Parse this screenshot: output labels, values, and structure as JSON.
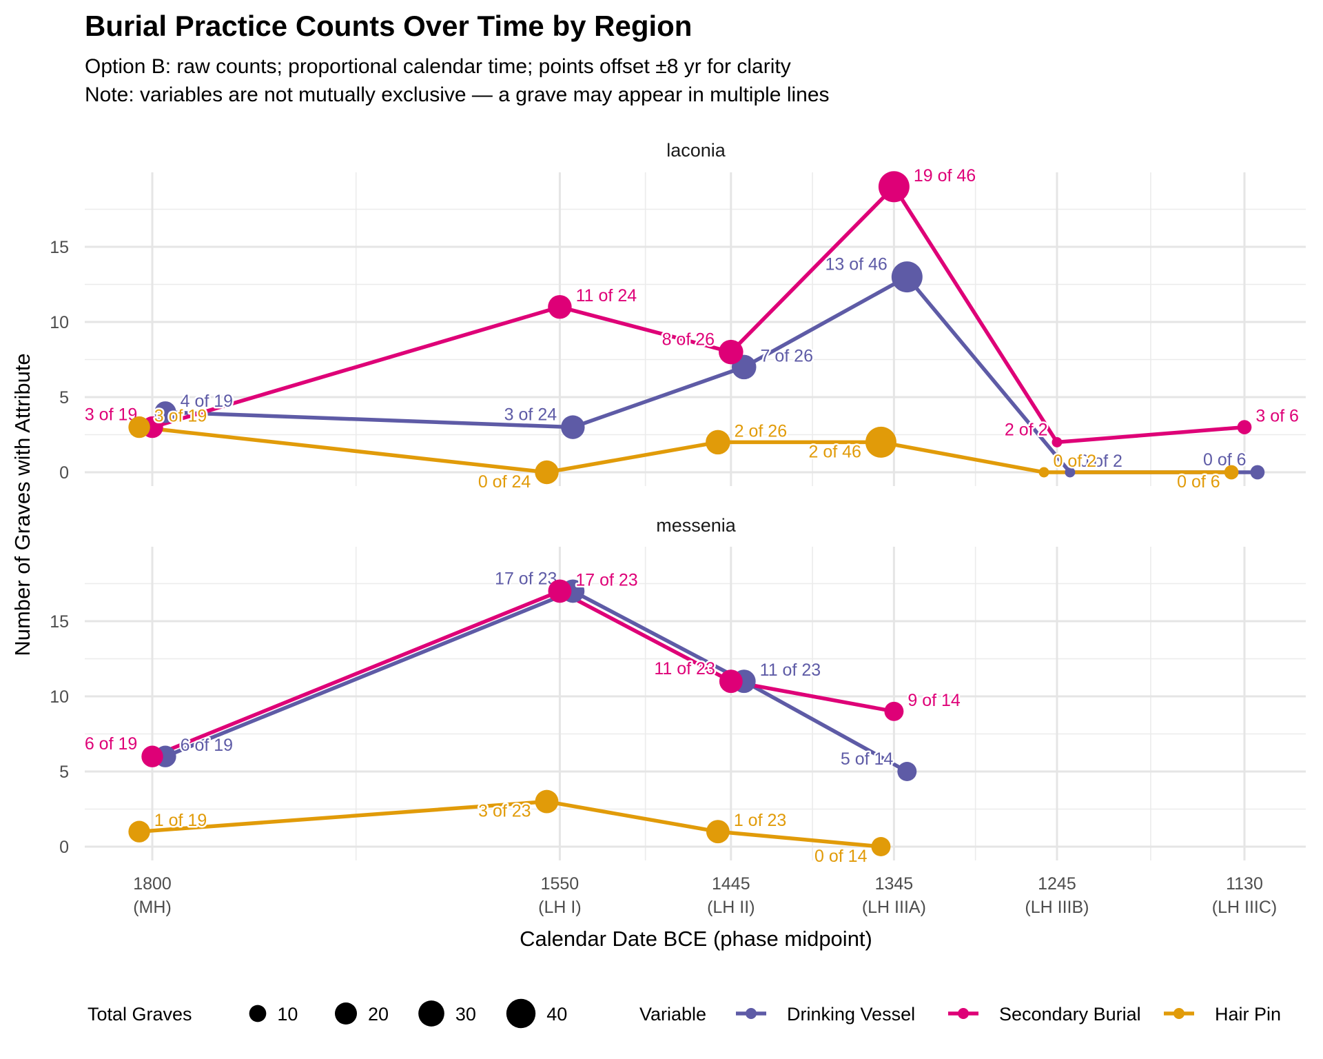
{
  "chart_data": {
    "type": "line",
    "title": "Burial Practice Counts Over Time by Region",
    "subtitle_lines": [
      "Option B: raw counts; proportional calendar time; points offset ±8 yr for clarity",
      "Note: variables are not mutually exclusive — a grave may appear in multiple lines"
    ],
    "xlabel": "Calendar Date BCE (phase midpoint)",
    "ylabel": "Number of Graves with Attribute",
    "x_ticks": [
      {
        "value": 1800,
        "label": "1800",
        "phase": "(MH)"
      },
      {
        "value": 1550,
        "label": "1550",
        "phase": "(LH I)"
      },
      {
        "value": 1445,
        "label": "1445",
        "phase": "(LH II)"
      },
      {
        "value": 1345,
        "label": "1345",
        "phase": "(LH IIIA)"
      },
      {
        "value": 1245,
        "label": "1245",
        "phase": "(LH IIIB)"
      },
      {
        "value": 1130,
        "label": "1130",
        "phase": "(LH IIIC)"
      }
    ],
    "xlim": [
      1835,
      1085
    ],
    "x_reversed": true,
    "y_ticks": [
      0,
      5,
      10,
      15
    ],
    "ylim": [
      -0.8,
      19.6
    ],
    "grid": true,
    "point_offset_years": 8,
    "series_order": [
      "Drinking Vessel",
      "Secondary Burial",
      "Hair Pin"
    ],
    "colors": {
      "Drinking Vessel": "#5e5ba6",
      "Secondary Burial": "#de0077",
      "Hair Pin": "#e19b09"
    },
    "offsets": {
      "Drinking Vessel": -8,
      "Secondary Burial": 0,
      "Hair Pin": 8
    },
    "panels": [
      {
        "name": "laconia",
        "series": [
          {
            "name": "Drinking Vessel",
            "points": [
              {
                "x": 1800,
                "y": 4,
                "total": 19,
                "label": "4 of 19"
              },
              {
                "x": 1550,
                "y": 3,
                "total": 24,
                "label": "3 of 24"
              },
              {
                "x": 1445,
                "y": 7,
                "total": 26,
                "label": "7 of 26"
              },
              {
                "x": 1345,
                "y": 13,
                "total": 46,
                "label": "13 of 46"
              },
              {
                "x": 1245,
                "y": 0,
                "total": 2,
                "label": "0 of 2"
              },
              {
                "x": 1130,
                "y": 0,
                "total": 6,
                "label": "0 of 6"
              }
            ]
          },
          {
            "name": "Secondary Burial",
            "points": [
              {
                "x": 1800,
                "y": 3,
                "total": 19,
                "label": "3 of 19"
              },
              {
                "x": 1550,
                "y": 11,
                "total": 24,
                "label": "11 of 24"
              },
              {
                "x": 1445,
                "y": 8,
                "total": 26,
                "label": "8 of 26"
              },
              {
                "x": 1345,
                "y": 19,
                "total": 46,
                "label": "19 of 46"
              },
              {
                "x": 1245,
                "y": 2,
                "total": 2,
                "label": "2 of 2"
              },
              {
                "x": 1130,
                "y": 3,
                "total": 6,
                "label": "3 of 6"
              }
            ]
          },
          {
            "name": "Hair Pin",
            "points": [
              {
                "x": 1800,
                "y": 3,
                "total": 19,
                "label": "3 of 19"
              },
              {
                "x": 1550,
                "y": 0,
                "total": 24,
                "label": "0 of 24"
              },
              {
                "x": 1445,
                "y": 2,
                "total": 26,
                "label": "2 of 26"
              },
              {
                "x": 1345,
                "y": 2,
                "total": 46,
                "label": "2 of 46"
              },
              {
                "x": 1245,
                "y": 0,
                "total": 2,
                "label": "0 of 2"
              },
              {
                "x": 1130,
                "y": 0,
                "total": 6,
                "label": "0 of 6"
              }
            ]
          }
        ]
      },
      {
        "name": "messenia",
        "series": [
          {
            "name": "Drinking Vessel",
            "points": [
              {
                "x": 1800,
                "y": 6,
                "total": 19,
                "label": "6 of 19"
              },
              {
                "x": 1550,
                "y": 17,
                "total": 23,
                "label": "17 of 23"
              },
              {
                "x": 1445,
                "y": 11,
                "total": 23,
                "label": "11 of 23"
              },
              {
                "x": 1345,
                "y": 5,
                "total": 14,
                "label": "5 of 14"
              }
            ]
          },
          {
            "name": "Secondary Burial",
            "points": [
              {
                "x": 1800,
                "y": 6,
                "total": 19,
                "label": "6 of 19"
              },
              {
                "x": 1550,
                "y": 17,
                "total": 23,
                "label": "17 of 23"
              },
              {
                "x": 1445,
                "y": 11,
                "total": 23,
                "label": "11 of 23"
              },
              {
                "x": 1345,
                "y": 9,
                "total": 14,
                "label": "9 of 14"
              }
            ]
          },
          {
            "name": "Hair Pin",
            "points": [
              {
                "x": 1800,
                "y": 1,
                "total": 19,
                "label": "1 of 19"
              },
              {
                "x": 1550,
                "y": 3,
                "total": 23,
                "label": "3 of 23"
              },
              {
                "x": 1445,
                "y": 1,
                "total": 23,
                "label": "1 of 23"
              },
              {
                "x": 1345,
                "y": 0,
                "total": 14,
                "label": "0 of 14"
              }
            ]
          }
        ]
      }
    ],
    "legend": {
      "placement": "bottom",
      "size_title": "Total Graves",
      "size_breaks": [
        10,
        20,
        30,
        40
      ],
      "color_title": "Variable",
      "color_items": [
        "Drinking Vessel",
        "Secondary Burial",
        "Hair Pin"
      ]
    }
  }
}
